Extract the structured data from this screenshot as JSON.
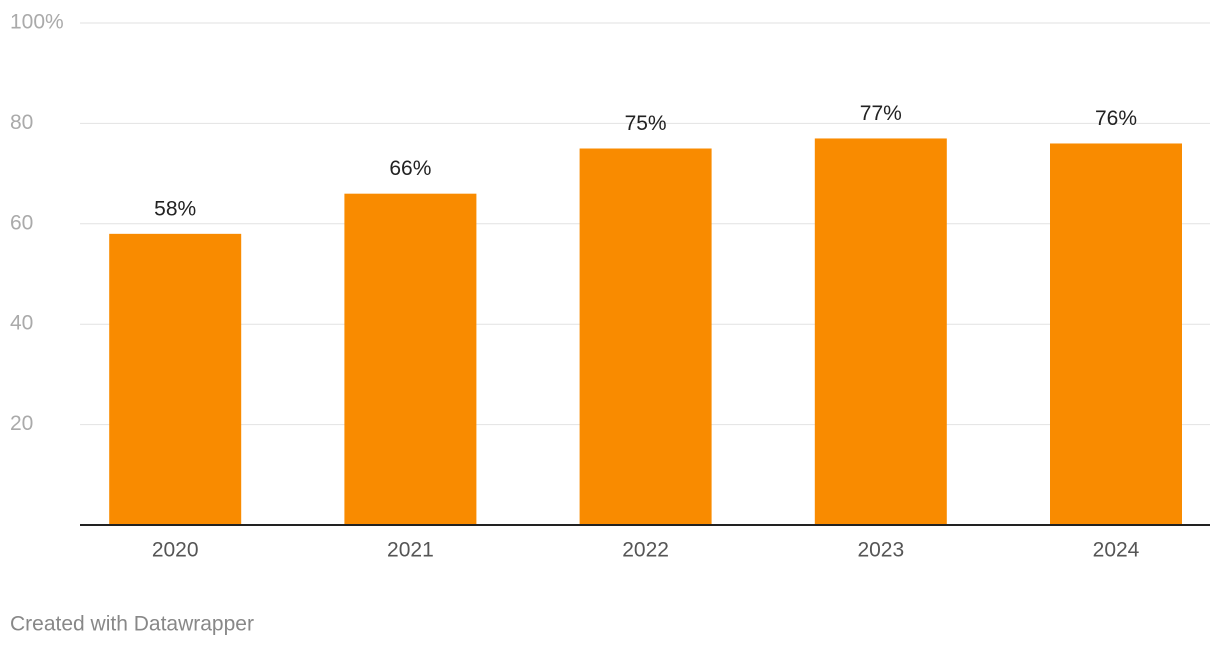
{
  "chart_data": {
    "type": "bar",
    "categories": [
      "2020",
      "2021",
      "2022",
      "2023",
      "2024"
    ],
    "values": [
      58,
      66,
      75,
      77,
      76
    ],
    "value_labels": [
      "58%",
      "66%",
      "75%",
      "77%",
      "76%"
    ],
    "color": "#f98b00",
    "ylim": [
      0,
      100
    ],
    "yticks": [
      20,
      40,
      60,
      80,
      {
        "value": 100,
        "label": "100%"
      }
    ],
    "grid": true,
    "credit": "Created with Datawrapper"
  }
}
